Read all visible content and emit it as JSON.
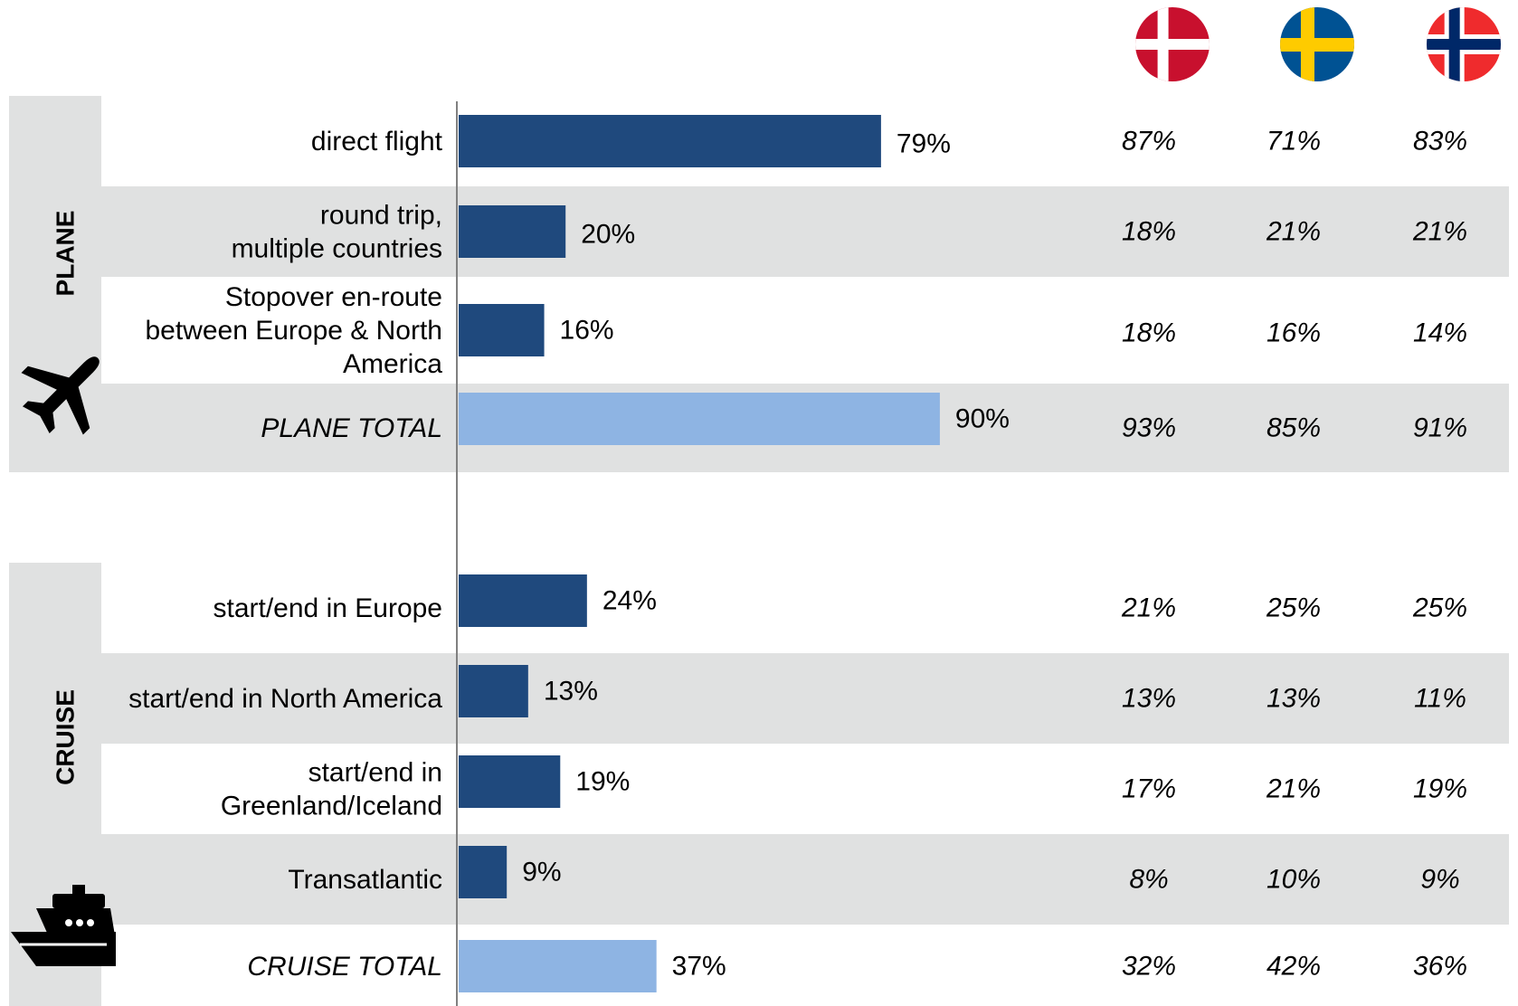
{
  "flags": [
    {
      "country": "Denmark",
      "icon": "denmark-flag-icon"
    },
    {
      "country": "Sweden",
      "icon": "sweden-flag-icon"
    },
    {
      "country": "Norway",
      "icon": "norway-flag-icon"
    }
  ],
  "colors": {
    "bar": "#1f497d",
    "total_bar": "#8eb4e3",
    "band": "#e0e1e1",
    "axis": "#808080",
    "denmark_red": "#c8102e",
    "sweden_blue": "#005293",
    "sweden_yellow": "#fecb00",
    "norway_red": "#ef2b2d",
    "norway_blue": "#002868"
  },
  "chart_data": {
    "type": "bar",
    "orientation": "horizontal",
    "xlim": [
      0,
      100
    ],
    "groups": [
      {
        "label": "PLANE",
        "icon": "airplane-icon",
        "rows": [
          {
            "label": "direct flight",
            "value": 79,
            "value_label": "79%",
            "total": false,
            "by_country": [
              "87%",
              "71%",
              "83%"
            ]
          },
          {
            "label": "round trip,\nmultiple countries",
            "value": 20,
            "value_label": "20%",
            "total": false,
            "by_country": [
              "18%",
              "21%",
              "21%"
            ]
          },
          {
            "label": "Stopover en-route\nbetween Europe & North\nAmerica",
            "value": 16,
            "value_label": "16%",
            "total": false,
            "by_country": [
              "18%",
              "16%",
              "14%"
            ]
          },
          {
            "label": "PLANE TOTAL",
            "value": 90,
            "value_label": "90%",
            "total": true,
            "by_country": [
              "93%",
              "85%",
              "91%"
            ]
          }
        ]
      },
      {
        "label": "CRUISE",
        "icon": "cruise-ship-icon",
        "rows": [
          {
            "label": "start/end in Europe",
            "value": 24,
            "value_label": "24%",
            "total": false,
            "by_country": [
              "21%",
              "25%",
              "25%"
            ]
          },
          {
            "label": "start/end in North America",
            "value": 13,
            "value_label": "13%",
            "total": false,
            "by_country": [
              "13%",
              "13%",
              "11%"
            ]
          },
          {
            "label": "start/end in\nGreenland/Iceland",
            "value": 19,
            "value_label": "19%",
            "total": false,
            "by_country": [
              "17%",
              "21%",
              "19%"
            ]
          },
          {
            "label": "Transatlantic",
            "value": 9,
            "value_label": "9%",
            "total": false,
            "by_country": [
              "8%",
              "10%",
              "9%"
            ]
          },
          {
            "label": "CRUISE TOTAL",
            "value": 37,
            "value_label": "37%",
            "total": true,
            "by_country": [
              "32%",
              "42%",
              "36%"
            ]
          }
        ]
      }
    ]
  }
}
